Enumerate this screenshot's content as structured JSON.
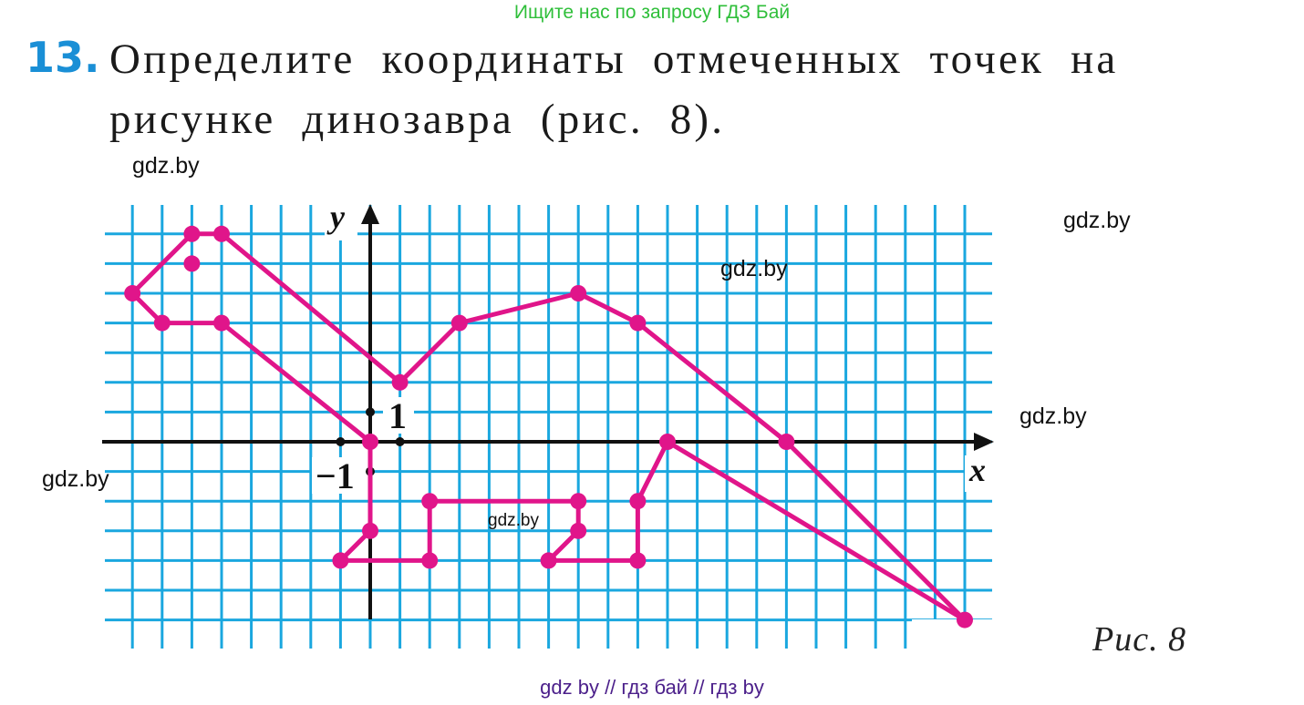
{
  "header_note": "Ищите нас по запросу ГДЗ Бай",
  "exercise": {
    "number": "13.",
    "text_line1": "Определите координаты отмеченных точек на",
    "text_line2": "рисунке динозавра (рис. 8)."
  },
  "figure": {
    "caption": "Рис. 8",
    "x_axis_label": "x",
    "y_axis_label": "y",
    "tick_label_1": "1",
    "tick_label_minus1": "−1",
    "x_range": [
      -8,
      20
    ],
    "y_range": [
      -6,
      7
    ],
    "colors": {
      "grid": "#1aa7df",
      "shape": "#e0158a",
      "axes": "#111111"
    },
    "outline_points": [
      [
        -8,
        5
      ],
      [
        -6,
        7
      ],
      [
        -5,
        7
      ],
      [
        1,
        2
      ],
      [
        3,
        4
      ],
      [
        7,
        5
      ],
      [
        9,
        4
      ],
      [
        14,
        0
      ],
      [
        20,
        -6
      ],
      [
        10,
        0
      ],
      [
        9,
        -2
      ],
      [
        9,
        -4
      ],
      [
        6,
        -4
      ],
      [
        7,
        -3
      ],
      [
        7,
        -2
      ],
      [
        2,
        -2
      ],
      [
        2,
        -4
      ],
      [
        -1,
        -4
      ],
      [
        0,
        -3
      ],
      [
        0,
        0
      ],
      [
        -5,
        4
      ],
      [
        -7,
        4
      ],
      [
        -8,
        5
      ]
    ],
    "eye_point": [
      -6,
      6
    ],
    "axis_unit_dots": [
      [
        -1,
        0
      ],
      [
        1,
        0
      ],
      [
        0,
        1
      ],
      [
        0,
        -1
      ]
    ]
  },
  "watermarks": [
    "gdz.by",
    "gdz.by",
    "gdz.by",
    "gdz.by",
    "gdz.by",
    "gdz.by"
  ],
  "footer_note": "gdz by  //  гдз бай  //  гдз by"
}
